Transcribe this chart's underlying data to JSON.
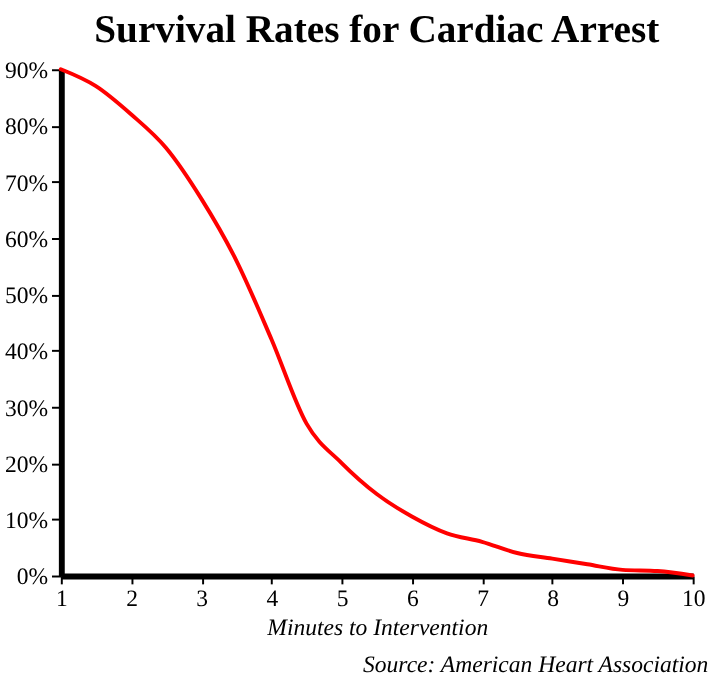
{
  "chart_data": {
    "type": "line",
    "title": "Survival Rates for Cardiac Arrest",
    "xlabel": "Minutes to Intervention",
    "annotations": [
      "Source: American Heart Association"
    ],
    "x": [
      1,
      1.5,
      2,
      2.5,
      3,
      3.5,
      4,
      4.5,
      5,
      5.5,
      6,
      6.5,
      7,
      7.5,
      8,
      8.5,
      9,
      9.5,
      10
    ],
    "series": [
      {
        "color": "#ff0000",
        "values": [
          90,
          87,
          82,
          76,
          67,
          56,
          42,
          27,
          20,
          14.5,
          10.5,
          7.5,
          6,
          4,
          3,
          2,
          1,
          0.8,
          0
        ]
      }
    ],
    "xlim": [
      1,
      10
    ],
    "xticks": [
      1,
      2,
      3,
      4,
      5,
      6,
      7,
      8,
      9,
      10
    ],
    "ylim": [
      0,
      90
    ],
    "yticks": [
      {
        "value": 0,
        "label": "0%"
      },
      {
        "value": 10,
        "label": "10%"
      },
      {
        "value": 20,
        "label": "20%"
      },
      {
        "value": 30,
        "label": "30%"
      },
      {
        "value": 40,
        "label": "40%"
      },
      {
        "value": 50,
        "label": "50%"
      },
      {
        "value": 60,
        "label": "60%"
      },
      {
        "value": 70,
        "label": "70%"
      },
      {
        "value": 80,
        "label": "80%"
      },
      {
        "value": 90,
        "label": "90%"
      }
    ],
    "grid": false,
    "marker": "none",
    "line_style": "solid"
  }
}
